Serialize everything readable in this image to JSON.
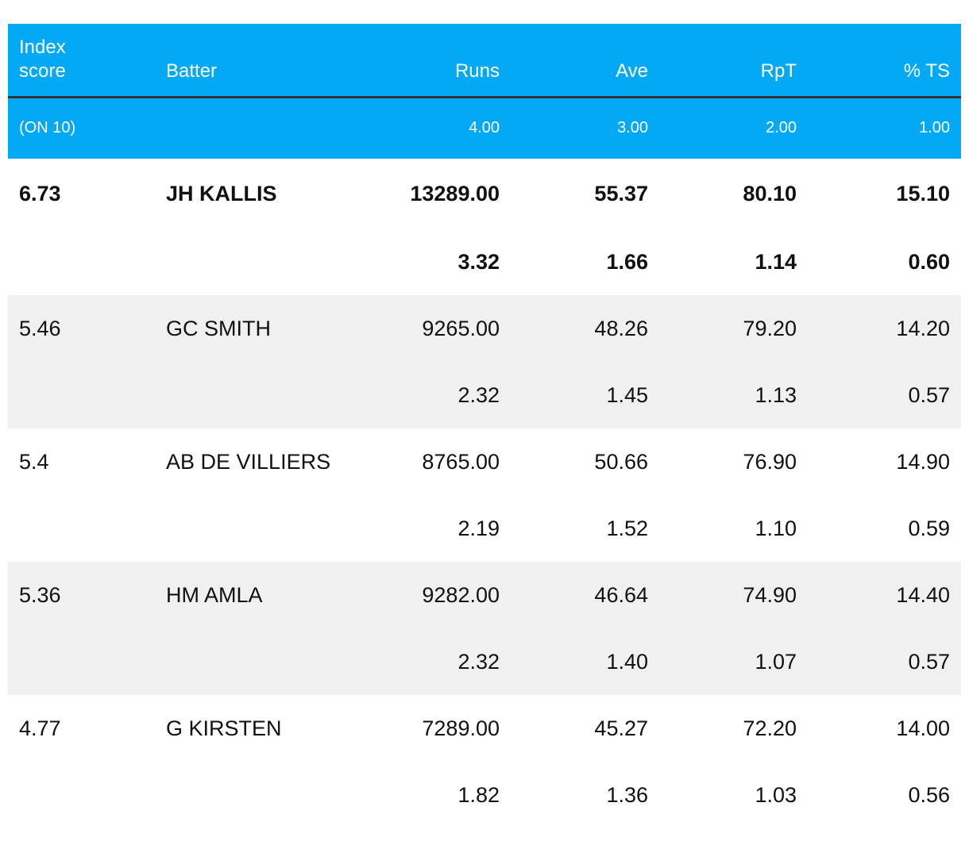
{
  "chart_data": {
    "type": "table",
    "columns": [
      "Index score",
      "Batter",
      "Runs",
      "Ave",
      "RpT",
      "% TS"
    ],
    "weights": {
      "index_label": "(ON 10)",
      "runs": "4.00",
      "ave": "3.00",
      "rpt": "2.00",
      "ts": "1.00"
    },
    "rows": [
      {
        "index": "6.73",
        "batter": "JH KALLIS",
        "runs": "13289.00",
        "ave": "55.37",
        "rpt": "80.10",
        "ts": "15.10",
        "runs_score": "3.32",
        "ave_score": "1.66",
        "rpt_score": "1.14",
        "ts_score": "0.60"
      },
      {
        "index": "5.46",
        "batter": "GC SMITH",
        "runs": "9265.00",
        "ave": "48.26",
        "rpt": "79.20",
        "ts": "14.20",
        "runs_score": "2.32",
        "ave_score": "1.45",
        "rpt_score": "1.13",
        "ts_score": "0.57"
      },
      {
        "index": "5.4",
        "batter": "AB DE VILLIERS",
        "runs": "8765.00",
        "ave": "50.66",
        "rpt": "76.90",
        "ts": "14.90",
        "runs_score": "2.19",
        "ave_score": "1.52",
        "rpt_score": "1.10",
        "ts_score": "0.59"
      },
      {
        "index": "5.36",
        "batter": "HM AMLA",
        "runs": "9282.00",
        "ave": "46.64",
        "rpt": "74.90",
        "ts": "14.40",
        "runs_score": "2.32",
        "ave_score": "1.40",
        "rpt_score": "1.07",
        "ts_score": "0.57"
      },
      {
        "index": "4.77",
        "batter": "G KIRSTEN",
        "runs": "7289.00",
        "ave": "45.27",
        "rpt": "72.20",
        "ts": "14.00",
        "runs_score": "1.82",
        "ave_score": "1.36",
        "rpt_score": "1.03",
        "ts_score": "0.56"
      }
    ]
  },
  "header": {
    "index_line1": "Index",
    "index_line2": "score"
  },
  "colors": {
    "header_bg": "#03a9f4",
    "header_text": "#ffffff",
    "header_rule": "#333333",
    "stripe_bg": "#f0f0f0"
  }
}
